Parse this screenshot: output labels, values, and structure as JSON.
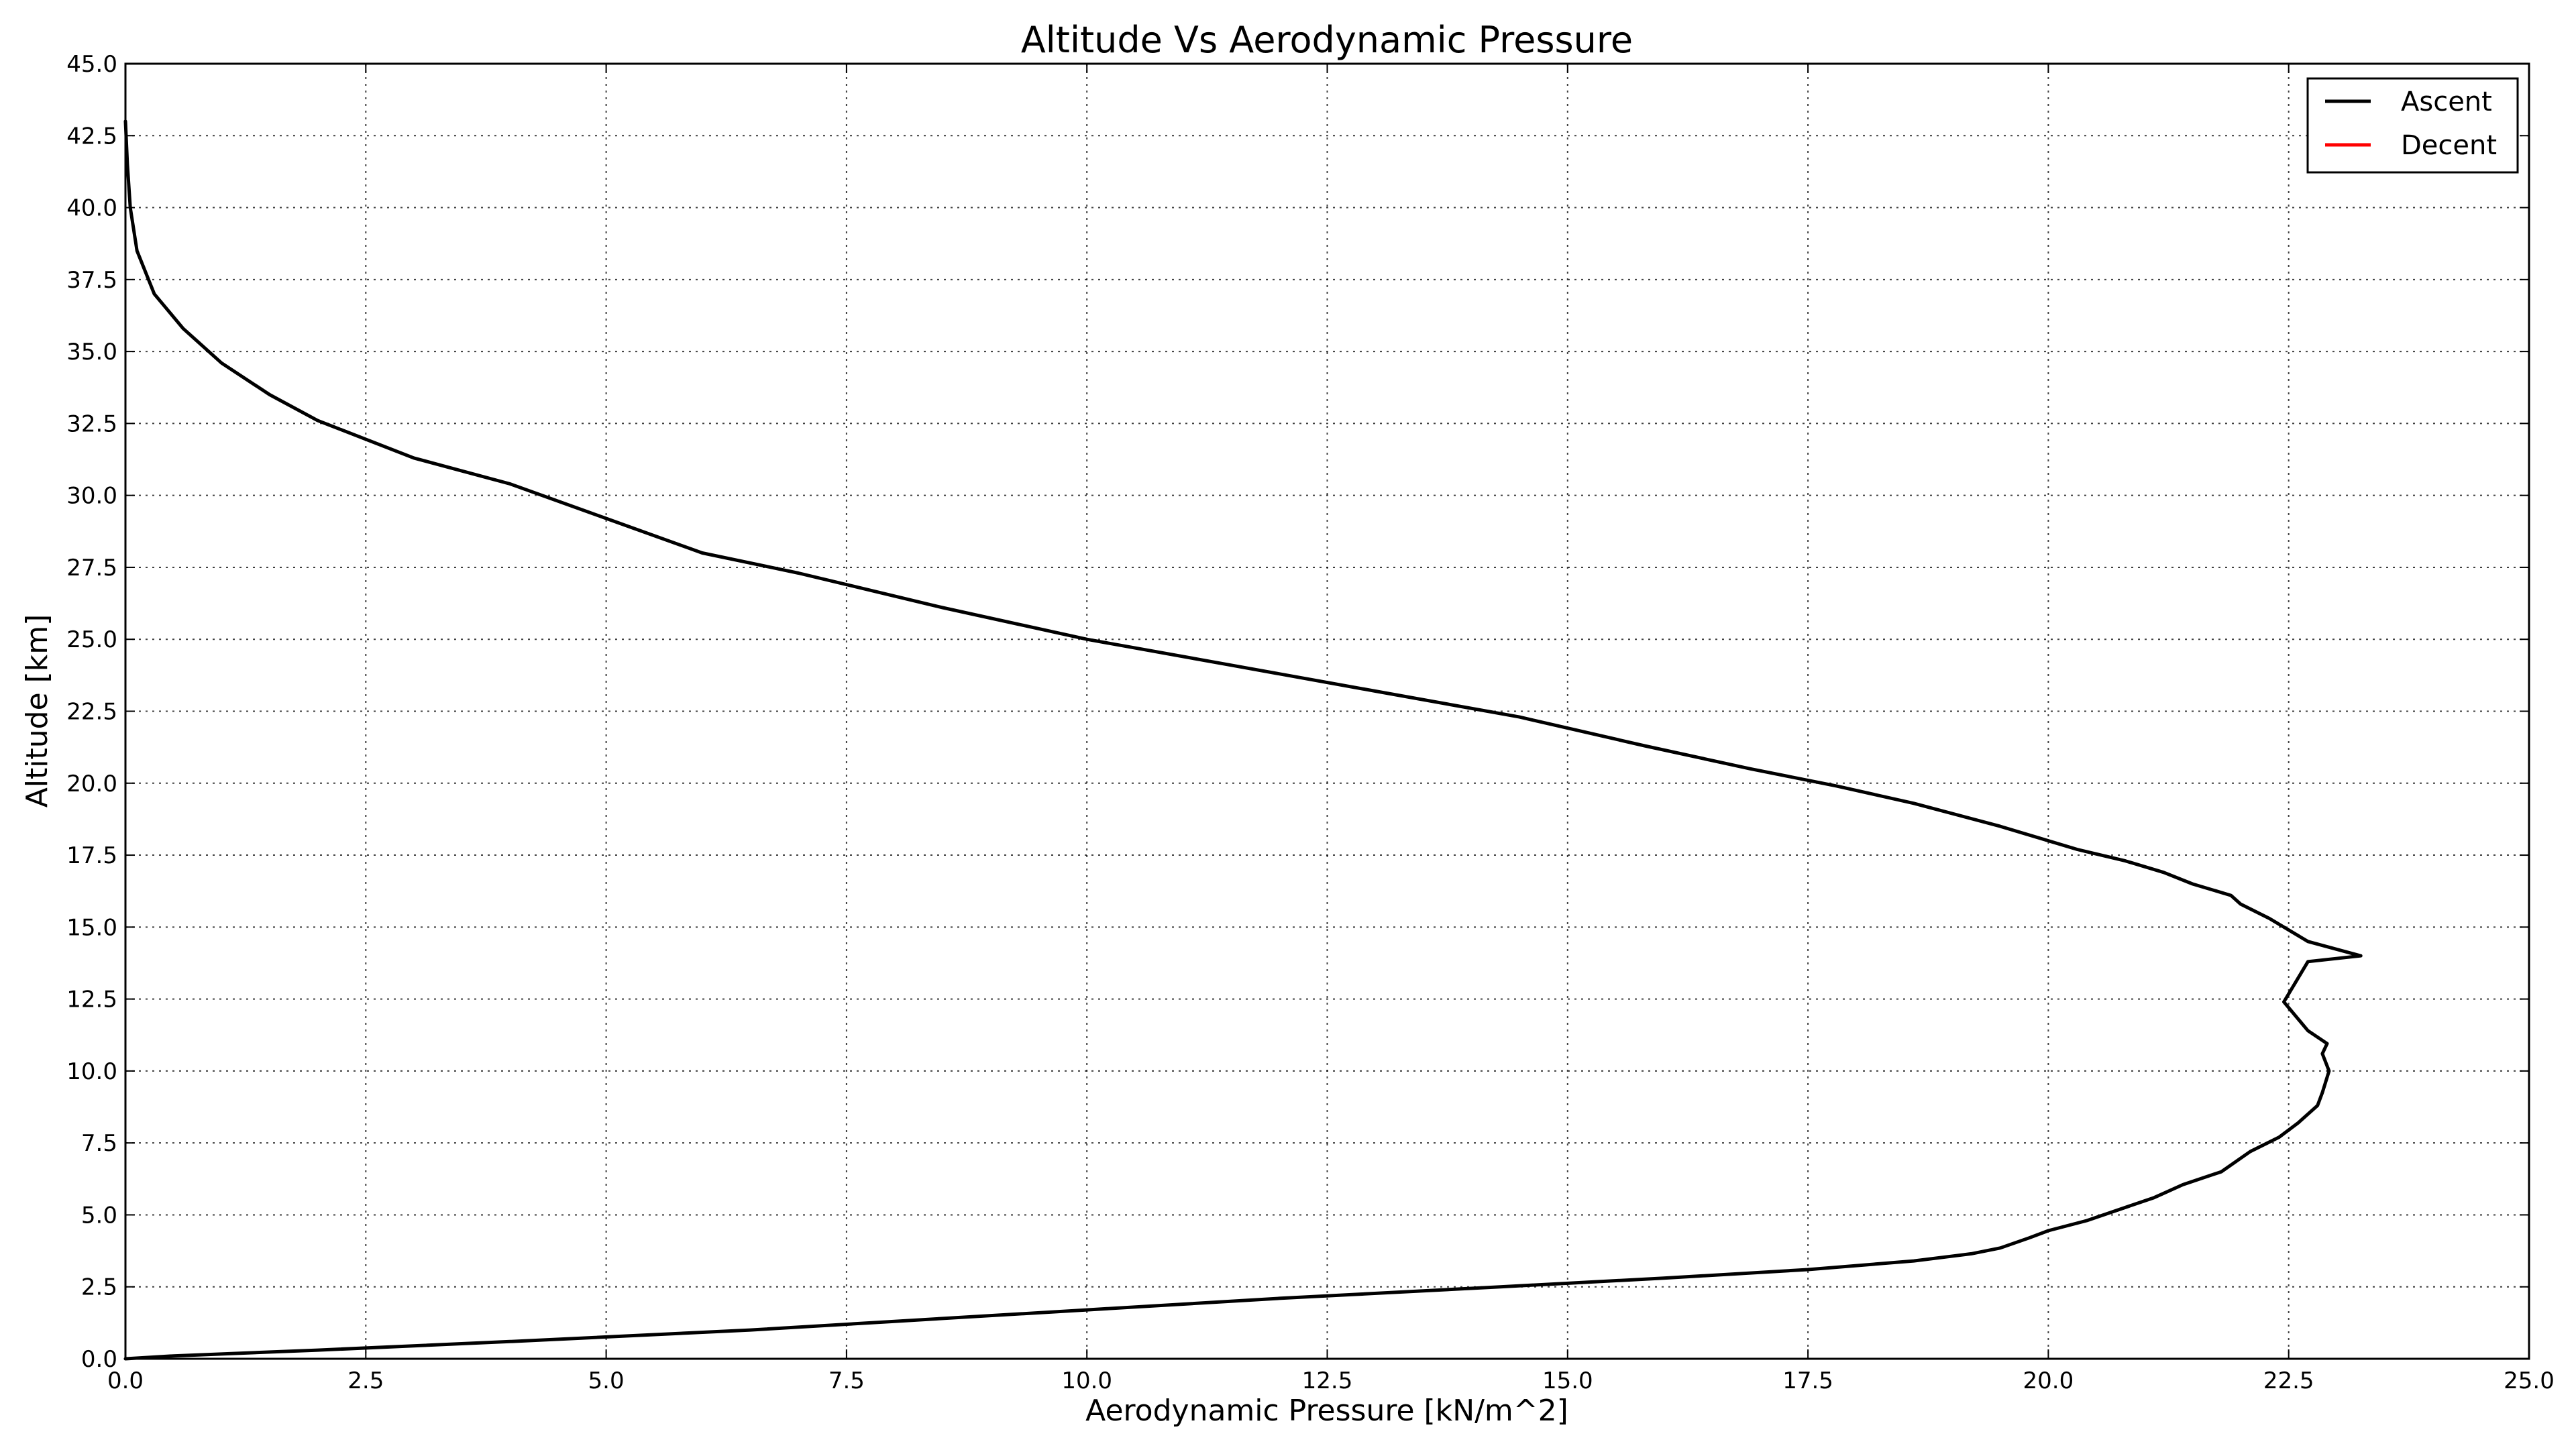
{
  "chart_data": {
    "type": "line",
    "title": "Altitude Vs Aerodynamic Pressure",
    "xlabel": "Aerodynamic Pressure [kN/m^2]",
    "ylabel": "Altitude [km]",
    "xlim": [
      0,
      25
    ],
    "ylim": [
      0,
      45
    ],
    "grid": true,
    "legend_position": "top-right",
    "x_ticks": [
      "0.0",
      "2.5",
      "5.0",
      "7.5",
      "10.0",
      "12.5",
      "15.0",
      "17.5",
      "20.0",
      "22.5",
      "25.0"
    ],
    "y_ticks": [
      "0.0",
      "2.5",
      "5.0",
      "7.5",
      "10.0",
      "12.5",
      "15.0",
      "17.5",
      "20.0",
      "22.5",
      "25.0",
      "27.5",
      "30.0",
      "32.5",
      "35.0",
      "37.5",
      "40.0",
      "42.5",
      "45.0"
    ],
    "series": [
      {
        "name": "Ascent",
        "color": "#000000",
        "points": [
          [
            0.0,
            0.0
          ],
          [
            0.5,
            0.1
          ],
          [
            2.0,
            0.3
          ],
          [
            4.0,
            0.6
          ],
          [
            6.5,
            1.0
          ],
          [
            8.0,
            1.3
          ],
          [
            10.0,
            1.7
          ],
          [
            12.0,
            2.1
          ],
          [
            14.3,
            2.5
          ],
          [
            16.0,
            2.8
          ],
          [
            17.5,
            3.1
          ],
          [
            18.6,
            3.4
          ],
          [
            19.2,
            3.65
          ],
          [
            19.5,
            3.85
          ],
          [
            19.8,
            4.2
          ],
          [
            20.0,
            4.45
          ],
          [
            20.4,
            4.8
          ],
          [
            21.1,
            5.6
          ],
          [
            21.4,
            6.05
          ],
          [
            21.8,
            6.5
          ],
          [
            22.1,
            7.2
          ],
          [
            22.4,
            7.7
          ],
          [
            22.6,
            8.2
          ],
          [
            22.8,
            8.8
          ],
          [
            22.85,
            9.25
          ],
          [
            22.92,
            10.0
          ],
          [
            22.85,
            10.6
          ],
          [
            22.9,
            10.95
          ],
          [
            22.7,
            11.4
          ],
          [
            22.6,
            11.8
          ],
          [
            22.45,
            12.4
          ],
          [
            22.7,
            13.8
          ],
          [
            23.25,
            14.0
          ],
          [
            22.7,
            14.5
          ],
          [
            22.3,
            15.3
          ],
          [
            22.0,
            15.8
          ],
          [
            21.9,
            16.1
          ],
          [
            21.5,
            16.5
          ],
          [
            21.2,
            16.9
          ],
          [
            20.8,
            17.3
          ],
          [
            20.3,
            17.7
          ],
          [
            19.5,
            18.5
          ],
          [
            18.6,
            19.3
          ],
          [
            17.8,
            19.9
          ],
          [
            16.9,
            20.5
          ],
          [
            15.8,
            21.3
          ],
          [
            14.5,
            22.3
          ],
          [
            13.0,
            23.2
          ],
          [
            11.5,
            24.1
          ],
          [
            10.0,
            25.0
          ],
          [
            8.5,
            26.1
          ],
          [
            7.0,
            27.3
          ],
          [
            6.0,
            28.0
          ],
          [
            5.0,
            29.2
          ],
          [
            4.0,
            30.4
          ],
          [
            3.0,
            31.3
          ],
          [
            2.0,
            32.6
          ],
          [
            1.5,
            33.5
          ],
          [
            1.0,
            34.6
          ],
          [
            0.6,
            35.8
          ],
          [
            0.3,
            37.0
          ],
          [
            0.12,
            38.5
          ],
          [
            0.05,
            40.0
          ],
          [
            0.02,
            41.5
          ],
          [
            0.0,
            43.0
          ]
        ]
      },
      {
        "name": "Decent",
        "color": "#ff0000",
        "points": []
      }
    ]
  }
}
